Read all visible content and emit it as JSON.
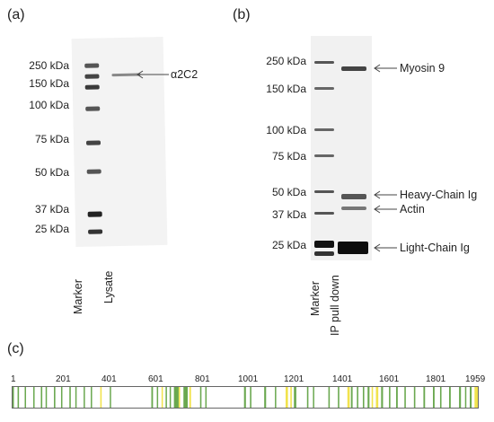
{
  "panel_a": {
    "label": "(a)",
    "markers": [
      "250 kDa",
      "150 kDa",
      "100 kDa",
      "75 kDa",
      "50 kDa",
      "37 kDa",
      "25 kDa"
    ],
    "annotation": "α2C2",
    "lanes": [
      "Marker",
      "Lysate"
    ]
  },
  "panel_b": {
    "label": "(b)",
    "markers": [
      "250 kDa",
      "150 kDa",
      "100 kDa",
      "75 kDa",
      "50 kDa",
      "37 kDa",
      "25 kDa"
    ],
    "annotations": [
      "Myosin 9",
      "Heavy-Chain Ig",
      "Actin",
      "Light-Chain Ig"
    ],
    "lanes": [
      "Marker",
      "IP pull down"
    ]
  },
  "panel_c": {
    "label": "(c)",
    "ticks": [
      "1",
      "201",
      "401",
      "601",
      "801",
      "1001",
      "1201",
      "1401",
      "1601",
      "1801",
      "1959"
    ],
    "sequence_length": 1959,
    "colors": {
      "green": "#6aa84f",
      "yellow": "#f1e34d"
    },
    "segments": [
      {
        "start": 1,
        "end": 6,
        "color": "green"
      },
      {
        "start": 22,
        "end": 28,
        "color": "green"
      },
      {
        "start": 52,
        "end": 56,
        "color": "green"
      },
      {
        "start": 88,
        "end": 92,
        "color": "green"
      },
      {
        "start": 120,
        "end": 126,
        "color": "green"
      },
      {
        "start": 140,
        "end": 145,
        "color": "green"
      },
      {
        "start": 175,
        "end": 181,
        "color": "green"
      },
      {
        "start": 205,
        "end": 209,
        "color": "green"
      },
      {
        "start": 240,
        "end": 246,
        "color": "green"
      },
      {
        "start": 265,
        "end": 268,
        "color": "green"
      },
      {
        "start": 300,
        "end": 305,
        "color": "green"
      },
      {
        "start": 330,
        "end": 334,
        "color": "green"
      },
      {
        "start": 370,
        "end": 376,
        "color": "yellow"
      },
      {
        "start": 410,
        "end": 414,
        "color": "green"
      },
      {
        "start": 585,
        "end": 592,
        "color": "green"
      },
      {
        "start": 608,
        "end": 612,
        "color": "green"
      },
      {
        "start": 628,
        "end": 633,
        "color": "yellow"
      },
      {
        "start": 645,
        "end": 650,
        "color": "green"
      },
      {
        "start": 662,
        "end": 666,
        "color": "green"
      },
      {
        "start": 680,
        "end": 700,
        "color": "green"
      },
      {
        "start": 700,
        "end": 706,
        "color": "yellow"
      },
      {
        "start": 720,
        "end": 738,
        "color": "green"
      },
      {
        "start": 745,
        "end": 752,
        "color": "yellow"
      },
      {
        "start": 790,
        "end": 796,
        "color": "green"
      },
      {
        "start": 812,
        "end": 817,
        "color": "green"
      },
      {
        "start": 975,
        "end": 983,
        "color": "green"
      },
      {
        "start": 1000,
        "end": 1006,
        "color": "green"
      },
      {
        "start": 1060,
        "end": 1068,
        "color": "green"
      },
      {
        "start": 1105,
        "end": 1110,
        "color": "green"
      },
      {
        "start": 1150,
        "end": 1160,
        "color": "yellow"
      },
      {
        "start": 1170,
        "end": 1176,
        "color": "yellow"
      },
      {
        "start": 1185,
        "end": 1195,
        "color": "green"
      },
      {
        "start": 1240,
        "end": 1246,
        "color": "green"
      },
      {
        "start": 1265,
        "end": 1270,
        "color": "green"
      },
      {
        "start": 1330,
        "end": 1336,
        "color": "green"
      },
      {
        "start": 1370,
        "end": 1376,
        "color": "green"
      },
      {
        "start": 1410,
        "end": 1420,
        "color": "yellow"
      },
      {
        "start": 1425,
        "end": 1432,
        "color": "green"
      },
      {
        "start": 1450,
        "end": 1456,
        "color": "green"
      },
      {
        "start": 1475,
        "end": 1481,
        "color": "green"
      },
      {
        "start": 1495,
        "end": 1503,
        "color": "green"
      },
      {
        "start": 1512,
        "end": 1518,
        "color": "yellow"
      },
      {
        "start": 1530,
        "end": 1540,
        "color": "yellow"
      },
      {
        "start": 1552,
        "end": 1560,
        "color": "green"
      },
      {
        "start": 1585,
        "end": 1591,
        "color": "green"
      },
      {
        "start": 1615,
        "end": 1622,
        "color": "green"
      },
      {
        "start": 1650,
        "end": 1656,
        "color": "green"
      },
      {
        "start": 1690,
        "end": 1696,
        "color": "green"
      },
      {
        "start": 1730,
        "end": 1737,
        "color": "green"
      },
      {
        "start": 1770,
        "end": 1777,
        "color": "green"
      },
      {
        "start": 1800,
        "end": 1806,
        "color": "green"
      },
      {
        "start": 1838,
        "end": 1845,
        "color": "green"
      },
      {
        "start": 1880,
        "end": 1888,
        "color": "green"
      },
      {
        "start": 1905,
        "end": 1910,
        "color": "green"
      },
      {
        "start": 1925,
        "end": 1933,
        "color": "green"
      },
      {
        "start": 1945,
        "end": 1959,
        "color": "yellow"
      }
    ]
  }
}
